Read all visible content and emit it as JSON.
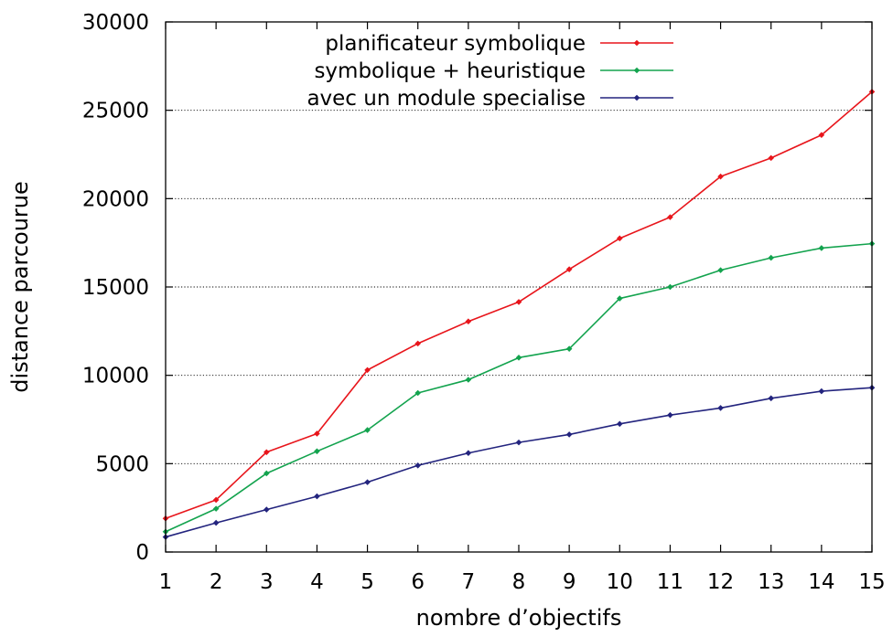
{
  "chart_data": {
    "type": "line",
    "title": "",
    "xlabel": "nombre d’objectifs",
    "ylabel": "distance parcourue",
    "xlim": [
      1,
      15
    ],
    "ylim": [
      0,
      30000
    ],
    "x": [
      1,
      2,
      3,
      4,
      5,
      6,
      7,
      8,
      9,
      10,
      11,
      12,
      13,
      14,
      15
    ],
    "x_ticks": [
      "1",
      "2",
      "3",
      "4",
      "5",
      "6",
      "7",
      "8",
      "9",
      "10",
      "11",
      "12",
      "13",
      "14",
      "15"
    ],
    "y_ticks": [
      "0",
      "5000",
      "10000",
      "15000",
      "20000",
      "25000",
      "30000"
    ],
    "y_tick_values": [
      0,
      5000,
      10000,
      15000,
      20000,
      25000,
      30000
    ],
    "grid": "horizontal dotted",
    "legend_position": "top-right",
    "series": [
      {
        "name": "planificateur symbolique",
        "color": "#e8151b",
        "values": [
          1900,
          2950,
          5650,
          6700,
          10300,
          11800,
          13050,
          14150,
          16000,
          17750,
          18950,
          21250,
          22300,
          23600,
          26050
        ]
      },
      {
        "name": "symbolique + heuristique",
        "color": "#13a34e",
        "values": [
          1150,
          2450,
          4450,
          5700,
          6900,
          9000,
          9750,
          11000,
          11500,
          14350,
          15000,
          15950,
          16650,
          17200,
          17450
        ]
      },
      {
        "name": "avec un module specialise",
        "color": "#23247e",
        "values": [
          850,
          1650,
          2400,
          3150,
          3950,
          4900,
          5600,
          6200,
          6650,
          7250,
          7750,
          8150,
          8700,
          9100,
          9300
        ]
      }
    ]
  }
}
